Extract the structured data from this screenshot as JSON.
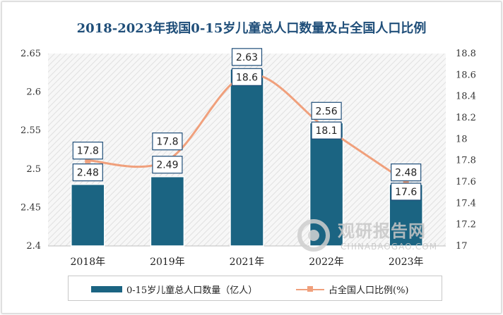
{
  "chart_data": {
    "type": "bar",
    "title": "2018-2023年我国0-15岁儿童总人口数量及占全国人口比例",
    "categories": [
      "2018年",
      "2019年",
      "2021年",
      "2022年",
      "2023年"
    ],
    "series": [
      {
        "name": "0-15岁儿童总人口数量（亿人）",
        "type": "bar",
        "axis": "left",
        "values": [
          2.48,
          2.49,
          2.63,
          2.56,
          2.48
        ],
        "color": "#1b6482"
      },
      {
        "name": "占全国人口比例(%)",
        "type": "line",
        "axis": "right",
        "values": [
          17.8,
          17.8,
          18.6,
          18.1,
          17.6
        ],
        "color": "#f0a07c"
      }
    ],
    "y_left": {
      "min": 2.4,
      "max": 2.65,
      "ticks": [
        "2.4",
        "2.45",
        "2.5",
        "2.55",
        "2.6",
        "2.65"
      ]
    },
    "y_right": {
      "min": 17,
      "max": 18.8,
      "ticks": [
        "17",
        "17.2",
        "17.4",
        "17.6",
        "17.8",
        "18",
        "18.2",
        "18.4",
        "18.6",
        "18.8"
      ]
    },
    "bar_labels": [
      "2.48",
      "2.49",
      "2.63",
      "2.56",
      "2.48"
    ],
    "line_labels": [
      "17.8",
      "17.8",
      "18.6",
      "18.1",
      "17.6"
    ],
    "legend_position": "bottom",
    "grid": false,
    "background": "diagonal-hatch"
  },
  "watermark": {
    "main": "观研报告网",
    "sub": "CHINABAOGAO.COM"
  }
}
